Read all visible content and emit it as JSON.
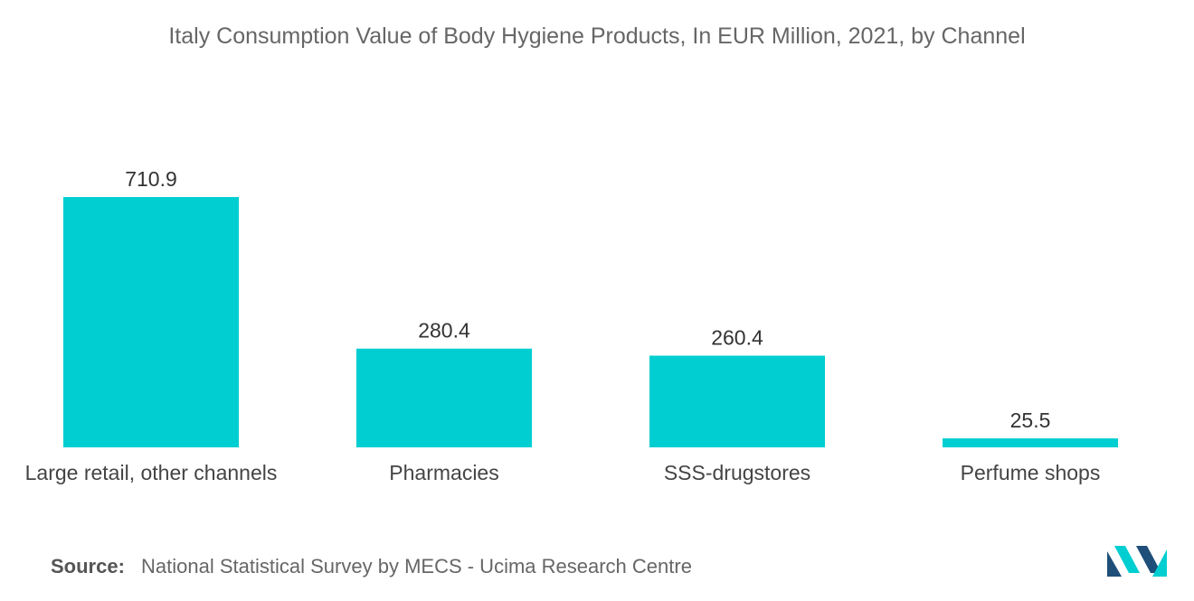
{
  "chart_data": {
    "type": "bar",
    "title": "Italy Consumption Value of Body Hygiene Products, In EUR Million, 2021, by Channel",
    "categories": [
      "Large retail, other channels",
      "Pharmacies",
      "SSS-drugstores",
      "Perfume shops"
    ],
    "values": [
      710.9,
      280.4,
      260.4,
      25.5
    ],
    "data_labels": [
      "710.9",
      "280.4",
      "260.4",
      "25.5"
    ],
    "xlabel": "",
    "ylabel": "",
    "ylim": [
      0,
      710.9
    ],
    "grid": false,
    "legend": "none",
    "bar_color": "#00CED1"
  },
  "source": {
    "label": "Source:",
    "text": "National Statistical Survey by MECS - Ucima Research Centre"
  },
  "colors": {
    "logo_dark": "#1F4E79",
    "logo_light": "#00CED1"
  },
  "logo": {
    "icon": "mordor-intelligence-logo-icon"
  }
}
